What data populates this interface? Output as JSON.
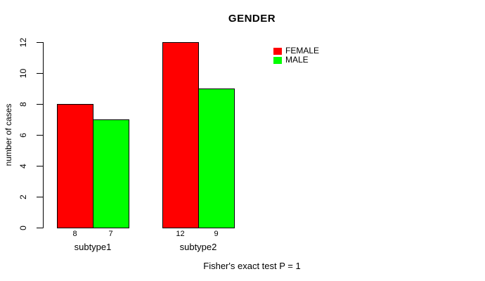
{
  "title": "GENDER",
  "footer": "Fisher's exact test P = 1",
  "chart_data": {
    "type": "bar",
    "title": "GENDER",
    "categories": [
      "subtype1",
      "subtype2"
    ],
    "series": [
      {
        "name": "FEMALE",
        "color": "#FF0000",
        "values": [
          8,
          12
        ]
      },
      {
        "name": "MALE",
        "color": "#00FF00",
        "values": [
          7,
          9
        ]
      }
    ],
    "xlabel": "",
    "ylabel": "number of cases",
    "ylim": [
      0,
      12
    ],
    "yticks": [
      0,
      2,
      4,
      6,
      8,
      10,
      12
    ],
    "grid": false,
    "bar_border_color": "#000000",
    "legend_position": "top-right",
    "annotation": "Fisher's exact test P = 1"
  }
}
